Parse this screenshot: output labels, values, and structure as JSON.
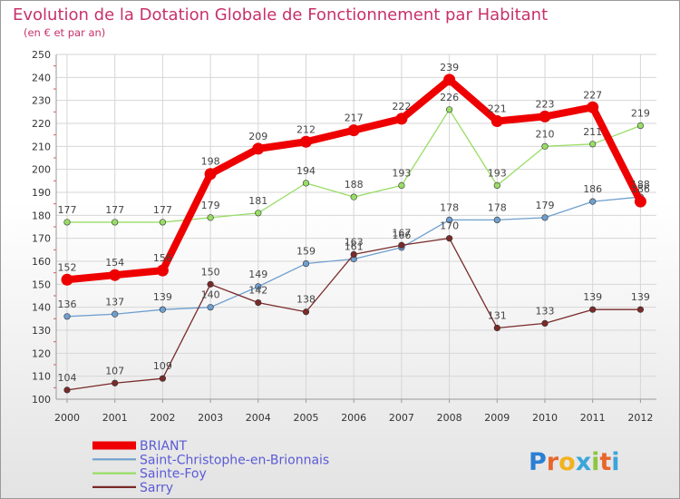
{
  "chart_data": {
    "type": "line",
    "title": "Evolution de la Dotation Globale de Fonctionnement par Habitant",
    "subtitle": "(en € et par an)",
    "xlabel": "",
    "ylabel": "",
    "ylim": [
      100,
      250
    ],
    "ytick_step": 10,
    "yticks": [
      "100",
      "110",
      "120",
      "130",
      "140",
      "150",
      "160",
      "170",
      "180",
      "190",
      "200",
      "210",
      "220",
      "230",
      "240",
      "250"
    ],
    "categories": [
      "2000",
      "2001",
      "2002",
      "2003",
      "2004",
      "2005",
      "2006",
      "2007",
      "2008",
      "2009",
      "2010",
      "2011",
      "2012"
    ],
    "grid": true,
    "legend_position": "bottom-left",
    "series": [
      {
        "name": "BRIANT",
        "color": "#ee0000",
        "width": "thick",
        "values": [
          152,
          154,
          156,
          198,
          209,
          212,
          217,
          222,
          239,
          221,
          223,
          227,
          186
        ],
        "labels": [
          "152",
          "154",
          "156",
          "198",
          "209",
          "212",
          "217",
          "222",
          "239",
          "221",
          "223",
          "227",
          "186"
        ]
      },
      {
        "name": "Saint-Christophe-en-Brionnais",
        "color": "#6f9fcf",
        "width": "thin",
        "values": [
          136,
          137,
          139,
          140,
          149,
          159,
          161,
          166,
          178,
          178,
          179,
          186,
          188
        ],
        "labels": [
          "136",
          "137",
          "139",
          "140",
          "149",
          "159",
          "161",
          "166",
          "178",
          "178",
          "179",
          "186",
          "188"
        ]
      },
      {
        "name": "Sainte-Foy",
        "color": "#99dd66",
        "width": "thin",
        "values": [
          177,
          177,
          177,
          179,
          181,
          194,
          188,
          193,
          226,
          193,
          210,
          211,
          219
        ],
        "labels": [
          "177",
          "177",
          "177",
          "179",
          "181",
          "194",
          "188",
          "193",
          "226",
          "193",
          "210",
          "211",
          "219"
        ]
      },
      {
        "name": "Sarry",
        "color": "#7a2a2a",
        "width": "thin",
        "values": [
          104,
          107,
          109,
          150,
          142,
          138,
          163,
          167,
          170,
          131,
          133,
          139,
          139
        ],
        "labels": [
          "104",
          "107",
          "109",
          "150",
          "142",
          "138",
          "163",
          "167",
          "170",
          "131",
          "133",
          "139",
          "139"
        ]
      }
    ]
  },
  "branding": {
    "logo_text": "Proxiti"
  },
  "colors": {
    "title": "#c7316b",
    "legend_text": "#5b5bd6",
    "label_text": "#444444",
    "grid": "#d6d6d6",
    "axis": "#999999"
  }
}
